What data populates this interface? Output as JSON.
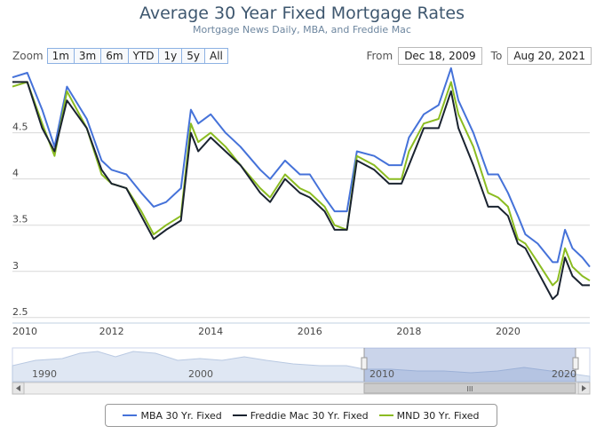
{
  "header": {
    "title": "Average 30 Year Fixed Mortgage Rates",
    "subtitle": "Mortgage News Daily, MBA, and Freddie Mac"
  },
  "zoom": {
    "label": "Zoom",
    "buttons": [
      "1m",
      "3m",
      "6m",
      "YTD",
      "1y",
      "5y",
      "All"
    ]
  },
  "range": {
    "from_label": "From",
    "from_value": "Dec 18, 2009",
    "to_label": "To",
    "to_value": "Aug 20, 2021"
  },
  "navigator": {
    "labels": [
      "1990",
      "2000",
      "2010",
      "2020"
    ],
    "scrollbar_grip": "III"
  },
  "chart_data": {
    "type": "line",
    "title": "Average 30 Year Fixed Mortgage Rates",
    "subtitle": "Mortgage News Daily, MBA, and Freddie Mac",
    "x_ticks": [
      "2010",
      "2012",
      "2014",
      "2016",
      "2018",
      "2020"
    ],
    "y_ticks": [
      "2.5",
      "3",
      "3.5",
      "4",
      "4.5"
    ],
    "x_range": [
      2010.0,
      2021.65
    ],
    "y_range": [
      2.45,
      5.15
    ],
    "legend_position": "bottom",
    "series": [
      {
        "name": "MBA 30 Yr. Fixed",
        "color": "#4572d9",
        "x": [
          2010.0,
          2010.3,
          2010.6,
          2010.85,
          2011.1,
          2011.5,
          2011.8,
          2012.0,
          2012.3,
          2012.6,
          2012.85,
          2013.1,
          2013.4,
          2013.6,
          2013.75,
          2014.0,
          2014.3,
          2014.6,
          2015.0,
          2015.2,
          2015.5,
          2015.8,
          2016.0,
          2016.3,
          2016.5,
          2016.75,
          2016.95,
          2017.3,
          2017.6,
          2017.85,
          2018.0,
          2018.3,
          2018.6,
          2018.85,
          2019.0,
          2019.3,
          2019.6,
          2019.8,
          2020.0,
          2020.2,
          2020.35,
          2020.6,
          2020.9,
          2021.0,
          2021.15,
          2021.3,
          2021.5,
          2021.65
        ],
        "y": [
          5.1,
          5.15,
          4.75,
          4.35,
          5.0,
          4.65,
          4.2,
          4.1,
          4.05,
          3.85,
          3.7,
          3.75,
          3.9,
          4.75,
          4.6,
          4.7,
          4.5,
          4.35,
          4.1,
          4.0,
          4.2,
          4.05,
          4.05,
          3.8,
          3.65,
          3.65,
          4.3,
          4.25,
          4.15,
          4.15,
          4.45,
          4.7,
          4.8,
          5.2,
          4.85,
          4.5,
          4.05,
          4.05,
          3.85,
          3.6,
          3.4,
          3.3,
          3.1,
          3.1,
          3.45,
          3.25,
          3.15,
          3.05
        ]
      },
      {
        "name": "Freddie Mac 30 Yr. Fixed",
        "color": "#1a2330",
        "x": [
          2010.0,
          2010.3,
          2010.6,
          2010.85,
          2011.1,
          2011.5,
          2011.8,
          2012.0,
          2012.3,
          2012.6,
          2012.85,
          2013.1,
          2013.4,
          2013.6,
          2013.75,
          2014.0,
          2014.3,
          2014.6,
          2015.0,
          2015.2,
          2015.5,
          2015.8,
          2016.0,
          2016.3,
          2016.5,
          2016.75,
          2016.95,
          2017.3,
          2017.6,
          2017.85,
          2018.0,
          2018.3,
          2018.6,
          2018.85,
          2019.0,
          2019.3,
          2019.6,
          2019.8,
          2020.0,
          2020.2,
          2020.35,
          2020.6,
          2020.9,
          2021.0,
          2021.15,
          2021.3,
          2021.5,
          2021.65
        ],
        "y": [
          5.05,
          5.05,
          4.55,
          4.3,
          4.85,
          4.55,
          4.1,
          3.95,
          3.9,
          3.6,
          3.35,
          3.45,
          3.55,
          4.5,
          4.3,
          4.45,
          4.3,
          4.15,
          3.85,
          3.75,
          4.0,
          3.85,
          3.8,
          3.65,
          3.45,
          3.45,
          4.2,
          4.1,
          3.95,
          3.95,
          4.15,
          4.55,
          4.55,
          4.95,
          4.55,
          4.15,
          3.7,
          3.7,
          3.6,
          3.3,
          3.25,
          3.0,
          2.7,
          2.75,
          3.15,
          2.95,
          2.85,
          2.85
        ]
      },
      {
        "name": "MND 30 Yr. Fixed",
        "color": "#8bbc21",
        "x": [
          2010.0,
          2010.3,
          2010.6,
          2010.85,
          2011.1,
          2011.5,
          2011.8,
          2012.0,
          2012.3,
          2012.6,
          2012.85,
          2013.1,
          2013.4,
          2013.6,
          2013.75,
          2014.0,
          2014.3,
          2014.6,
          2015.0,
          2015.2,
          2015.5,
          2015.8,
          2016.0,
          2016.3,
          2016.5,
          2016.75,
          2016.95,
          2017.3,
          2017.6,
          2017.85,
          2018.0,
          2018.3,
          2018.6,
          2018.85,
          2019.0,
          2019.3,
          2019.6,
          2019.8,
          2020.0,
          2020.2,
          2020.35,
          2020.6,
          2020.9,
          2021.0,
          2021.15,
          2021.3,
          2021.5,
          2021.65
        ],
        "y": [
          5.0,
          5.05,
          4.6,
          4.25,
          4.95,
          4.55,
          4.05,
          3.95,
          3.9,
          3.65,
          3.4,
          3.5,
          3.6,
          4.6,
          4.4,
          4.5,
          4.35,
          4.15,
          3.9,
          3.8,
          4.05,
          3.9,
          3.85,
          3.7,
          3.5,
          3.45,
          4.25,
          4.15,
          4.0,
          4.0,
          4.3,
          4.6,
          4.65,
          5.05,
          4.7,
          4.35,
          3.85,
          3.8,
          3.7,
          3.35,
          3.3,
          3.1,
          2.85,
          2.9,
          3.25,
          3.05,
          2.95,
          2.9
        ]
      }
    ]
  }
}
